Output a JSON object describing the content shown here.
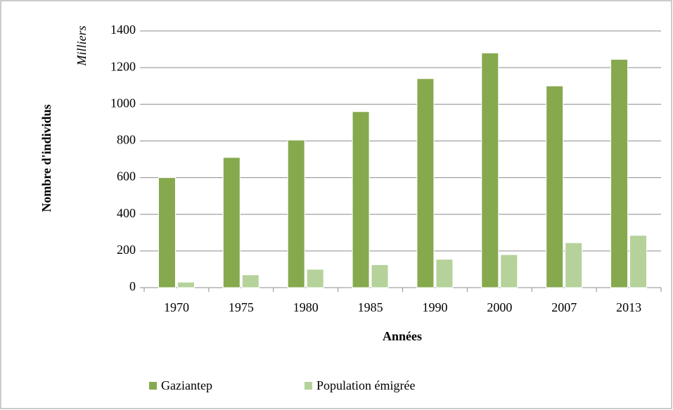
{
  "chart_data": {
    "type": "bar",
    "y_label": "Nombre d'individus",
    "y_unit": "Milliers",
    "x_label": "Années",
    "categories": [
      "1970",
      "1975",
      "1980",
      "1985",
      "1990",
      "2000",
      "2007",
      "2013"
    ],
    "series": [
      {
        "name": "Gaziantep",
        "color": "#86a94e",
        "values": [
          600,
          710,
          805,
          960,
          1140,
          1280,
          1100,
          1245
        ]
      },
      {
        "name": "Population émigrée",
        "color": "#b5d29b",
        "values": [
          30,
          70,
          100,
          125,
          155,
          180,
          245,
          285
        ]
      }
    ],
    "ylim": [
      0,
      1400
    ],
    "yticks": [
      0,
      200,
      400,
      600,
      800,
      1000,
      1200,
      1400
    ],
    "grid": true,
    "legend": "bottom"
  }
}
